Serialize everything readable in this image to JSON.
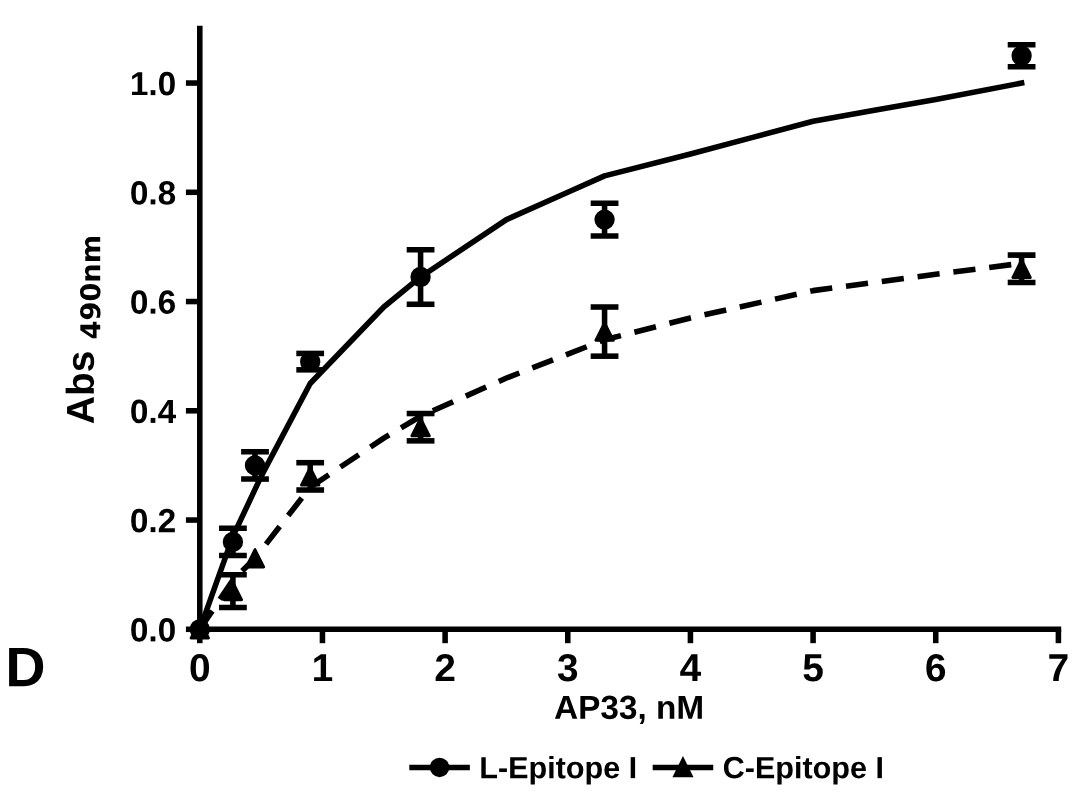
{
  "chart_data": {
    "type": "scatter",
    "xlabel": "AP33, nM",
    "ylabel": "Abs $_{490nm}$",
    "xlim": [
      0,
      7
    ],
    "ylim": [
      0,
      1.1
    ],
    "xticks": [
      0,
      1,
      2,
      3,
      4,
      5,
      6,
      7
    ],
    "yticks": [
      {
        "value": 0,
        "label": "0.0"
      },
      0.2,
      0.4,
      0.6,
      0.8,
      {
        "value": 1,
        "label": "1.0"
      }
    ],
    "grid": false,
    "legend": "bottom",
    "annotations": [
      "D"
    ],
    "series": [
      {
        "name": "L-Epitope I",
        "marker": "circle",
        "color": "#000000",
        "x": [
          0,
          0.27,
          0.45,
          0.9,
          1.8,
          3.3,
          6.7
        ],
        "values": [
          0,
          0.16,
          0.3,
          0.49,
          0.645,
          0.75,
          1.05
        ],
        "errors": [
          null,
          0.025,
          0.025,
          0.015,
          0.05,
          0.03,
          0.02
        ]
      },
      {
        "type": "line",
        "line_style": "solid",
        "color": "#000000",
        "x": [
          0,
          0.27,
          0.5,
          0.9,
          1.5,
          1.8,
          2.5,
          3,
          3.3,
          4,
          4.5,
          5,
          5.5,
          6,
          6.7
        ],
        "values": [
          0,
          0.17,
          0.28,
          0.45,
          0.59,
          0.645,
          0.75,
          0.8,
          0.83,
          0.87,
          0.9,
          0.93,
          0.95,
          0.97,
          1.0
        ]
      },
      {
        "name": "C-Epitope I",
        "marker": "triangle",
        "color": "#000000",
        "x": [
          0,
          0.27,
          0.45,
          0.9,
          1.8,
          3.3,
          6.7
        ],
        "values": [
          0,
          0.07,
          0.13,
          0.28,
          0.37,
          0.545,
          0.66
        ],
        "errors": [
          null,
          0.03,
          null,
          0.025,
          0.025,
          0.045,
          0.025
        ]
      },
      {
        "type": "line",
        "line_style": "dashed",
        "color": "#000000",
        "x": [
          0,
          0.27,
          0.45,
          0.9,
          1.5,
          1.8,
          2.5,
          3.3,
          4,
          5,
          6,
          6.7
        ],
        "values": [
          0,
          0.09,
          0.13,
          0.26,
          0.35,
          0.39,
          0.46,
          0.53,
          0.57,
          0.62,
          0.65,
          0.67
        ]
      }
    ]
  }
}
